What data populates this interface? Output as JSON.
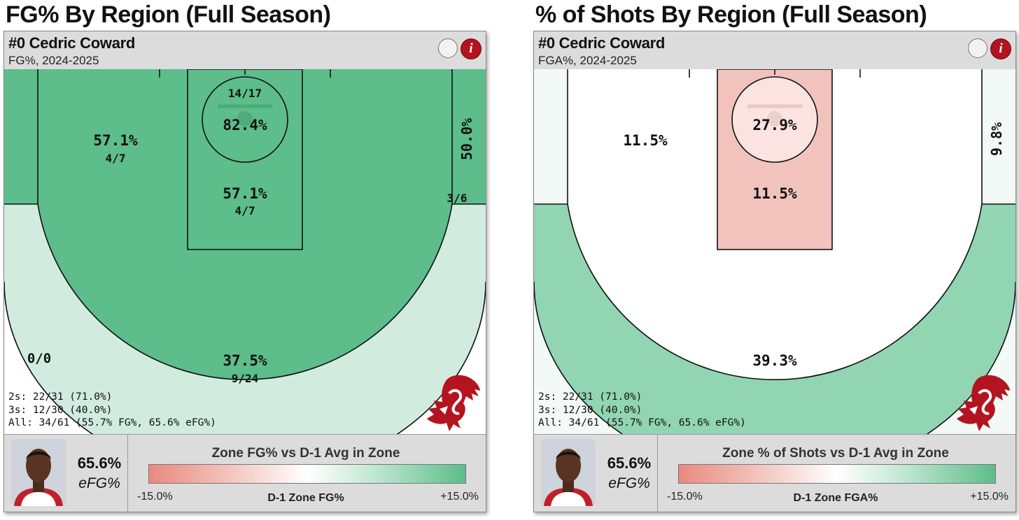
{
  "panels": [
    {
      "page_title": "FG% By Region (Full Season)",
      "player": "#0 Cedric Coward",
      "subtitle": "FG%, 2024-2025",
      "zones": {
        "left_corner": {
          "value": "0/0",
          "sub": "",
          "color": "#ffffff"
        },
        "right_corner": {
          "value": "50.0%",
          "sub": "3/6",
          "color": "#5dbd8b"
        },
        "above_break_three": {
          "value": "37.5%",
          "sub": "9/24",
          "color": "#d1ecde"
        },
        "left_midrange": {
          "value": "57.1%",
          "sub": "4/7",
          "color": "#5dbd8b"
        },
        "paint": {
          "value": "57.1%",
          "sub": "4/7",
          "color": "#5dbd8b"
        },
        "restricted_area": {
          "value": "82.4%",
          "sub": "14/17",
          "color": "#5dbd8b"
        }
      },
      "summary": {
        "twos": "2s: 22/31 (71.0%)",
        "threes": "3s: 12/30 (40.0%)",
        "all": "All: 34/61 (55.7% FG%, 65.6% eFG%)"
      },
      "efg_value": "65.6%",
      "efg_label": "eFG%",
      "legend": {
        "title": "Zone FG% vs D-1 Avg in Zone",
        "min": "-15.0%",
        "center": "D-1 Zone FG%",
        "max": "+15.0%"
      }
    },
    {
      "page_title": "% of Shots By Region (Full Season)",
      "player": "#0 Cedric Coward",
      "subtitle": "FGA%, 2024-2025",
      "zones": {
        "left_corner": {
          "value": "",
          "sub": "",
          "color": "#f3f9f6"
        },
        "right_corner": {
          "value": "9.8%",
          "sub": "",
          "color": "#f3f9f6"
        },
        "above_break_three": {
          "value": "39.3%",
          "sub": "",
          "color": "#91d5b2"
        },
        "left_midrange": {
          "value": "11.5%",
          "sub": "",
          "color": "#ffffff"
        },
        "paint": {
          "value": "11.5%",
          "sub": "",
          "color": "#f2c3bd"
        },
        "restricted_area": {
          "value": "27.9%",
          "sub": "",
          "color": "#fae3e0"
        }
      },
      "summary": {
        "twos": "2s: 22/31 (71.0%)",
        "threes": "3s: 12/30 (40.0%)",
        "all": "All: 34/61 (55.7% FG%, 65.6% eFG%)"
      },
      "efg_value": "65.6%",
      "efg_label": "eFG%",
      "legend": {
        "title": "Zone % of Shots vs D-1 Avg in Zone",
        "min": "-15.0%",
        "center": "D-1 Zone FGA%",
        "max": "+15.0%"
      }
    }
  ],
  "chart_data": [
    {
      "type": "heatmap",
      "title": "FG% By Region (Full Season)",
      "metric": "FG%",
      "season": "2024-2025",
      "zones": [
        {
          "zone": "Left Corner 3",
          "fg_pct": null,
          "made": 0,
          "attempts": 0
        },
        {
          "zone": "Right Corner 3",
          "fg_pct": 50.0,
          "made": 3,
          "attempts": 6
        },
        {
          "zone": "Above the Break 3",
          "fg_pct": 37.5,
          "made": 9,
          "attempts": 24
        },
        {
          "zone": "Mid-Range",
          "fg_pct": 57.1,
          "made": 4,
          "attempts": 7
        },
        {
          "zone": "Paint (Non-RA)",
          "fg_pct": 57.1,
          "made": 4,
          "attempts": 7
        },
        {
          "zone": "Restricted Area",
          "fg_pct": 82.4,
          "made": 14,
          "attempts": 17
        }
      ],
      "color_scale": {
        "min": -15.0,
        "max": 15.0,
        "low_color": "#e88a7f",
        "mid_color": "#ffffff",
        "high_color": "#5dbd8b"
      }
    },
    {
      "type": "heatmap",
      "title": "% of Shots By Region (Full Season)",
      "metric": "FGA%",
      "season": "2024-2025",
      "zones": [
        {
          "zone": "Right Corner 3",
          "fga_pct": 9.8
        },
        {
          "zone": "Above the Break 3",
          "fga_pct": 39.3
        },
        {
          "zone": "Mid-Range",
          "fga_pct": 11.5
        },
        {
          "zone": "Paint (Non-RA)",
          "fga_pct": 11.5
        },
        {
          "zone": "Restricted Area",
          "fga_pct": 27.9
        }
      ],
      "color_scale": {
        "min": -15.0,
        "max": 15.0,
        "low_color": "#e88a7f",
        "mid_color": "#ffffff",
        "high_color": "#5dbd8b"
      }
    }
  ]
}
